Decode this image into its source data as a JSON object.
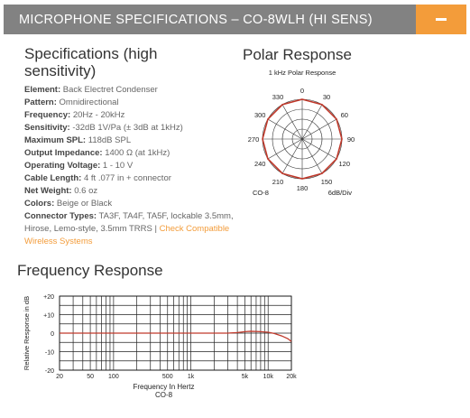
{
  "header": {
    "title": "MICROPHONE SPECIFICATIONS – CO-8WLH (HI SENS)",
    "toggle_icon": "minus-icon",
    "background": "#828282",
    "accent": "#f39c3a"
  },
  "specs": {
    "heading": "Specifications (high sensitivity)",
    "items": [
      {
        "key": "Element:",
        "value": "Back Electret Condenser"
      },
      {
        "key": "Pattern:",
        "value": "Omnidirectional"
      },
      {
        "key": "Frequency:",
        "value": "20Hz - 20kHz"
      },
      {
        "key": "Sensitivity:",
        "value": "-32dB 1V/Pa (± 3dB at 1kHz)"
      },
      {
        "key": "Maximum SPL:",
        "value": "118dB SPL"
      },
      {
        "key": "Output Impedance:",
        "value": "1400 Ω (at 1kHz)"
      },
      {
        "key": "Operating Voltage:",
        "value": "1 - 10 V"
      },
      {
        "key": "Cable Length:",
        "value": "4 ft .077 in + connector"
      },
      {
        "key": "Net Weight:",
        "value": "0.6 oz"
      },
      {
        "key": "Colors:",
        "value": "Beige or Black"
      }
    ],
    "connector_key": "Connector Types:",
    "connector_value": "TA3F, TA4F, TA5F, lockable 3.5mm, Hirose, Lemo-style, 3.5mm TRRS |",
    "connector_link": "Check Compatible Wireless Systems"
  },
  "polar": {
    "heading": "Polar Response",
    "title": "1 kHz Polar Response",
    "angles": [
      "0",
      "30",
      "60",
      "90",
      "120",
      "150",
      "180",
      "210",
      "240",
      "270",
      "300",
      "330"
    ],
    "model_label": "CO-8",
    "scale_label": "6dB/Div",
    "pattern_color": "#c0392b"
  },
  "frequency": {
    "heading": "Frequency Response",
    "ylabel": "Relative Response in dB",
    "xlabel": "Frequency In Hertz",
    "model_label": "CO-8",
    "y_ticks": [
      "+20",
      "+10",
      "0",
      "-10",
      "-20"
    ],
    "x_tick_labels": [
      "20",
      "50",
      "100",
      "500",
      "1k",
      "5k",
      "10k",
      "20k"
    ],
    "curve_color": "#c0392b"
  },
  "chart_data": [
    {
      "type": "line",
      "title": "1 kHz Polar Response",
      "angles_deg": [
        0,
        30,
        60,
        90,
        120,
        150,
        180,
        210,
        240,
        270,
        300,
        330
      ],
      "series": [
        {
          "values": [
            0,
            0,
            0,
            0,
            0,
            0,
            0,
            0,
            0,
            0,
            0,
            0
          ]
        }
      ],
      "rlim": [
        -24,
        0
      ],
      "grid": true
    },
    {
      "type": "line",
      "title": "",
      "xlabel": "Frequency In Hertz",
      "ylabel": "Relative Response in dB",
      "xscale": "log",
      "xlim": [
        20,
        20000
      ],
      "ylim": [
        -20,
        20
      ],
      "x": [
        20,
        50,
        100,
        500,
        1000,
        3000,
        4000,
        5000,
        6000,
        8000,
        10000,
        12000,
        15000,
        18000,
        20000
      ],
      "series": [
        {
          "values": [
            0,
            0,
            0,
            0,
            0,
            0,
            0.3,
            0.8,
            1.0,
            0.8,
            0.5,
            -0.2,
            -1.5,
            -3.0,
            -4.5
          ]
        }
      ],
      "grid": true
    }
  ]
}
